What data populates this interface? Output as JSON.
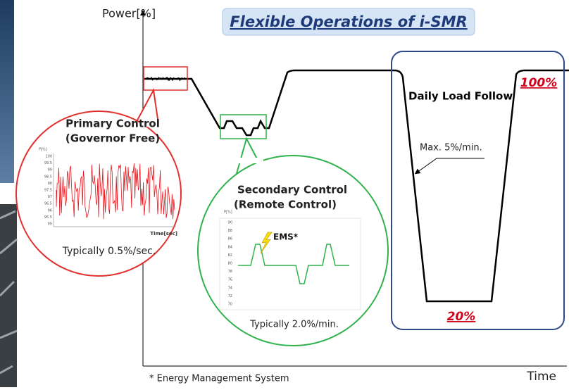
{
  "title": "Flexible Operations of i-SMR",
  "axis": {
    "y_label": "Power[%]",
    "x_label": "Time"
  },
  "daily_load_follow": {
    "label": "Daily Load Follow",
    "high": "100%",
    "low": "20%",
    "ramp": "Max. 5%/min."
  },
  "primary_control": {
    "title_lines": [
      "Primary Control",
      "(Governor Free)"
    ],
    "inset": {
      "y_label": "P[%]",
      "y_ticks": [
        "100",
        "99.5",
        "99",
        "98.5",
        "98",
        "97.5",
        "97",
        "96.5",
        "96",
        "95.5",
        "95"
      ],
      "x_label": "Time[sec]"
    },
    "rate": "Typically 0.5%/sec."
  },
  "secondary_control": {
    "title_lines": [
      "Secondary Control",
      "(Remote Control)"
    ],
    "inset": {
      "y_label": "P[%]",
      "y_ticks": [
        "90",
        "88",
        "86",
        "84",
        "82",
        "80",
        "78",
        "76",
        "74",
        "72",
        "70"
      ],
      "annotation": "EMS*"
    },
    "rate": "Typically 2.0%/min."
  },
  "footnote": "* Energy Management System"
}
